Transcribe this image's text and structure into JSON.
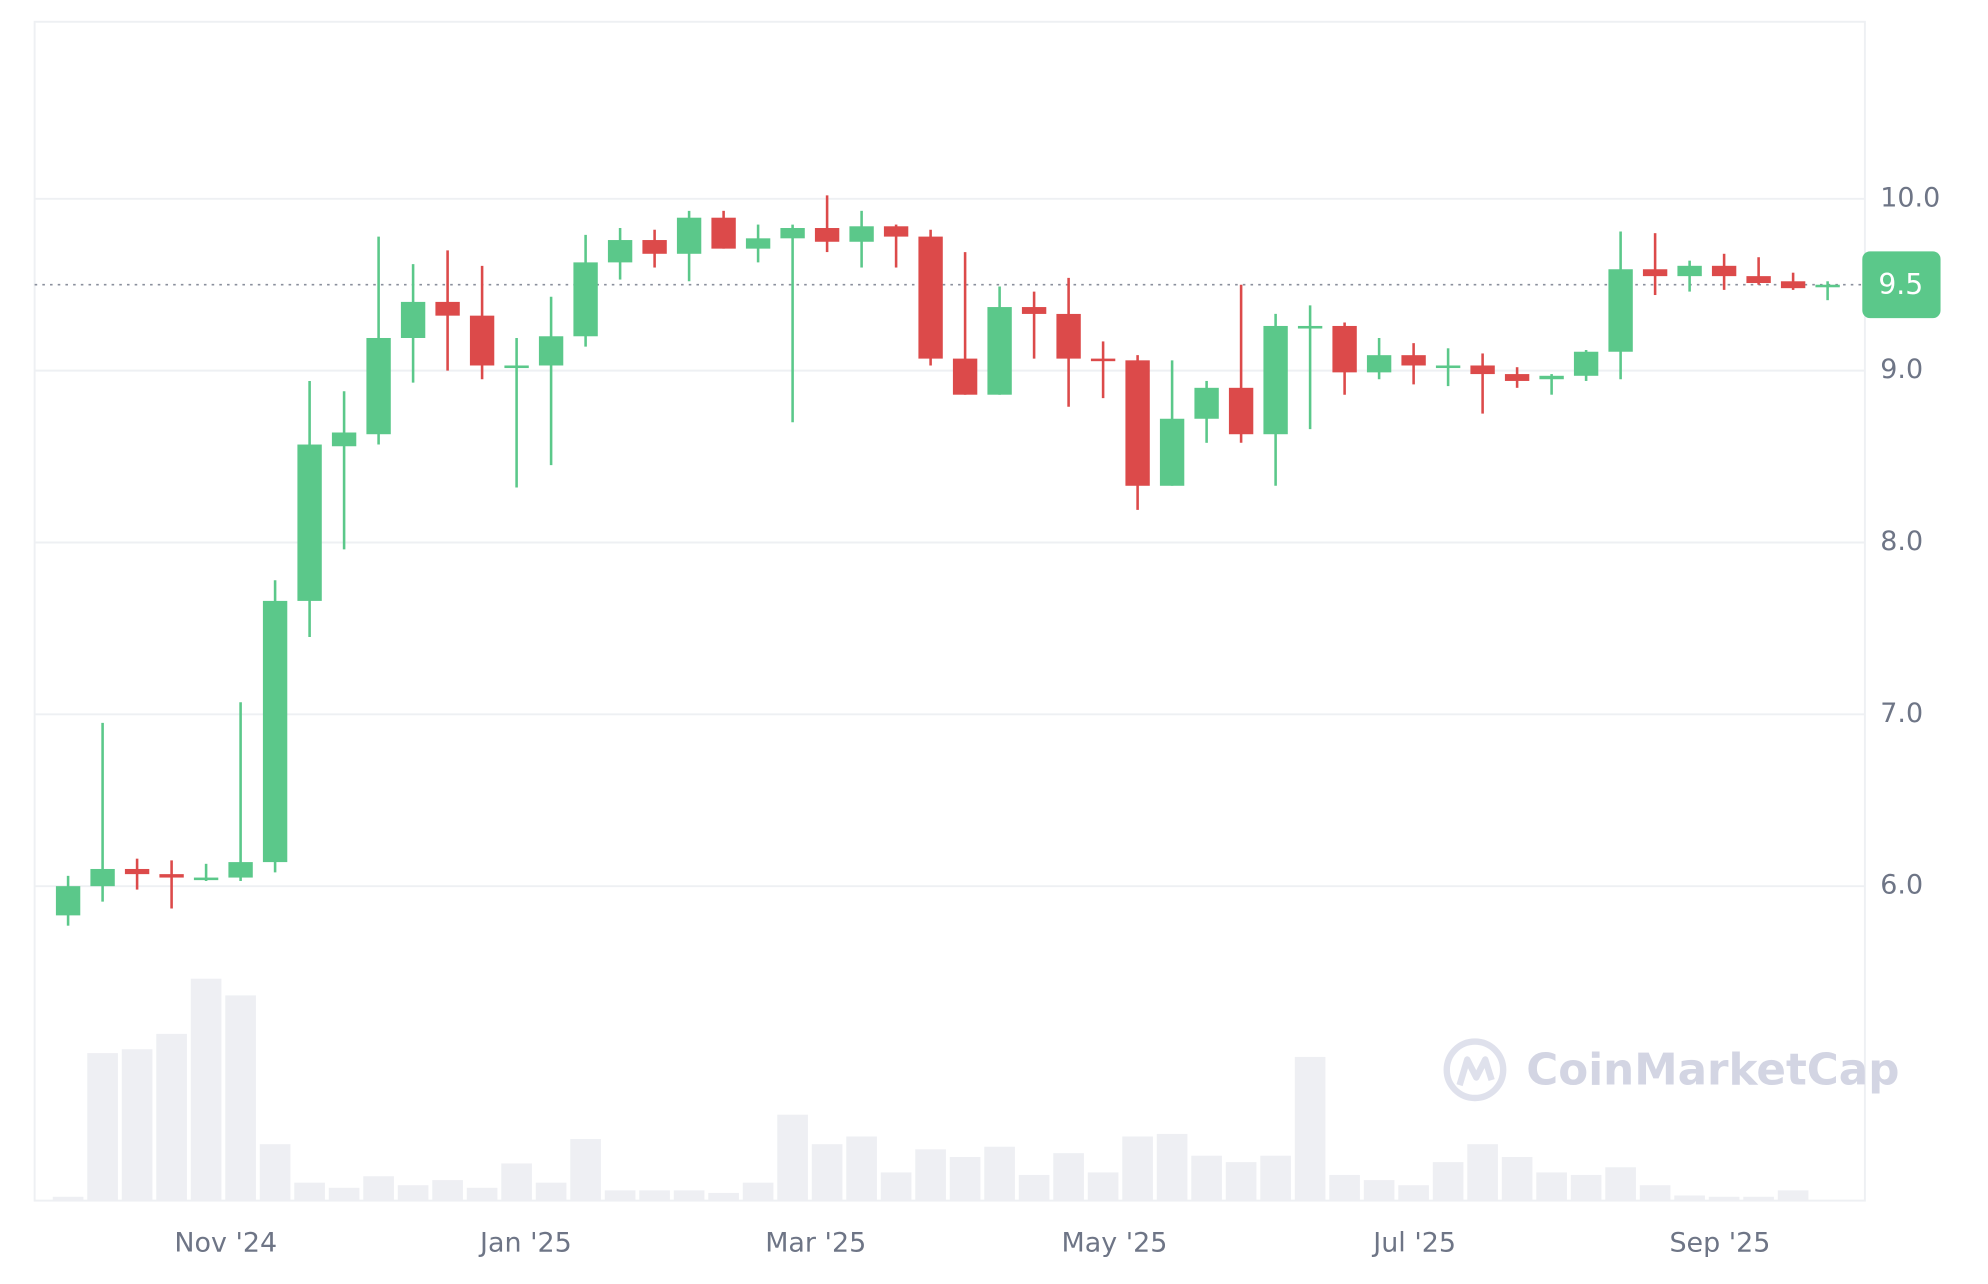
{
  "chart_data": {
    "type": "candlestick",
    "open": [
      5.83,
      6.0,
      6.1,
      6.07,
      6.04,
      6.05,
      6.14,
      7.66,
      8.56,
      8.63,
      9.19,
      9.4,
      9.32,
      9.02,
      9.03,
      9.2,
      9.63,
      9.76,
      9.68,
      9.89,
      9.71,
      9.77,
      9.83,
      9.75,
      9.84,
      9.78,
      9.07,
      8.86,
      9.37,
      9.33,
      9.07,
      9.06,
      8.33,
      8.72,
      8.9,
      8.63,
      9.25,
      9.26,
      8.99,
      9.09,
      9.02,
      9.03,
      8.98,
      8.95,
      8.97,
      9.11,
      9.59,
      9.55,
      9.61,
      9.55,
      9.52,
      9.49
    ],
    "high": [
      6.06,
      6.95,
      6.16,
      6.15,
      6.13,
      7.07,
      7.78,
      8.94,
      8.88,
      9.78,
      9.62,
      9.7,
      9.61,
      9.19,
      9.43,
      9.79,
      9.83,
      9.82,
      9.93,
      9.93,
      9.85,
      9.85,
      10.02,
      9.93,
      9.85,
      9.82,
      9.69,
      9.49,
      9.46,
      9.54,
      9.17,
      9.09,
      9.06,
      8.94,
      9.5,
      9.33,
      9.38,
      9.28,
      9.19,
      9.16,
      9.13,
      9.1,
      9.02,
      8.98,
      9.12,
      9.81,
      9.8,
      9.64,
      9.68,
      9.66,
      9.57,
      9.52
    ],
    "low": [
      5.77,
      5.91,
      5.98,
      5.87,
      6.03,
      6.03,
      6.08,
      7.45,
      7.96,
      8.57,
      8.93,
      9.0,
      8.95,
      8.32,
      8.45,
      9.14,
      9.53,
      9.6,
      9.52,
      9.71,
      9.63,
      8.7,
      9.69,
      9.6,
      9.6,
      9.03,
      8.86,
      8.86,
      9.07,
      8.79,
      8.84,
      8.19,
      8.33,
      8.58,
      8.58,
      8.33,
      8.66,
      8.86,
      8.95,
      8.92,
      8.91,
      8.75,
      8.9,
      8.86,
      8.94,
      8.95,
      9.44,
      9.46,
      9.47,
      9.5,
      9.47,
      9.41
    ],
    "close": [
      6.0,
      6.1,
      6.07,
      6.05,
      6.05,
      6.14,
      7.66,
      8.57,
      8.64,
      9.19,
      9.4,
      9.32,
      9.03,
      9.03,
      9.2,
      9.63,
      9.76,
      9.68,
      9.89,
      9.71,
      9.77,
      9.83,
      9.75,
      9.84,
      9.78,
      9.07,
      8.86,
      9.37,
      9.33,
      9.07,
      9.06,
      8.33,
      8.72,
      8.9,
      8.63,
      9.26,
      9.26,
      8.99,
      9.09,
      9.03,
      9.03,
      8.98,
      8.94,
      8.97,
      9.11,
      9.59,
      9.55,
      9.61,
      9.55,
      9.51,
      9.48,
      9.5
    ],
    "volume": [
      3,
      115,
      118,
      130,
      173,
      160,
      44,
      14,
      10,
      19,
      12,
      16,
      10,
      29,
      14,
      48,
      8,
      8,
      8,
      6,
      14,
      67,
      44,
      50,
      22,
      40,
      34,
      42,
      20,
      37,
      22,
      50,
      52,
      35,
      30,
      35,
      112,
      20,
      16,
      12,
      30,
      44,
      34,
      22,
      20,
      26,
      12,
      4,
      3,
      3,
      8,
      0
    ],
    "up_color": "#5bc88a",
    "down_color": "#dc4a4a",
    "volume_color": "#eeeff3",
    "current_price": 9.5,
    "ylim": [
      4.17,
      11.03
    ],
    "yticks": [
      {
        "value": 6,
        "label": "6.0"
      },
      {
        "value": 7,
        "label": "7.0"
      },
      {
        "value": 8,
        "label": "8.0"
      },
      {
        "value": 9,
        "label": "9.0"
      },
      {
        "value": 10,
        "label": "10.0"
      }
    ],
    "xlim": [
      -0.97,
      52.08
    ],
    "xticks": [
      {
        "value": 4.57,
        "label": "Nov '24"
      },
      {
        "value": 13.27,
        "label": "Jan '25"
      },
      {
        "value": 21.67,
        "label": "Mar '25"
      },
      {
        "value": 30.33,
        "label": "May '25"
      },
      {
        "value": 39.03,
        "label": "Jul '25"
      },
      {
        "value": 47.88,
        "label": "Sep '25"
      }
    ],
    "grid": true,
    "watermark": "CoinMarketCap"
  }
}
